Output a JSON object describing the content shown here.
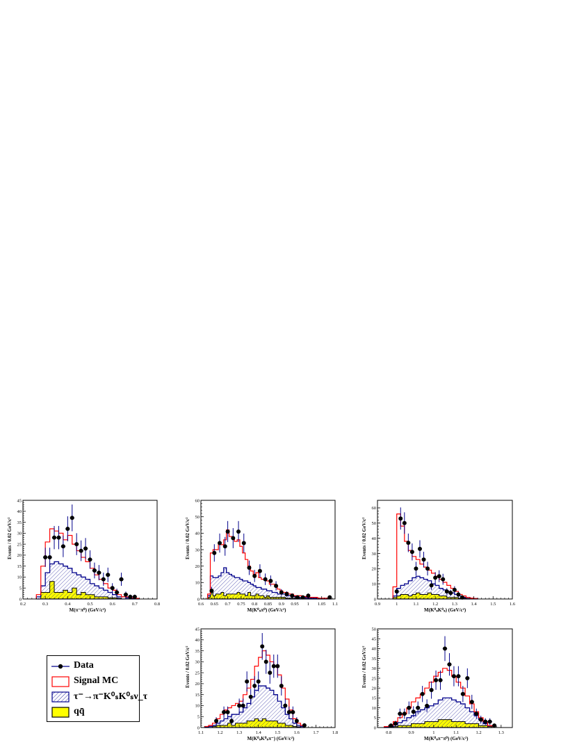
{
  "chart_data": [
    {
      "id": "p1",
      "type": "histogram",
      "xlabel": "M(π⁻π⁰) (GeV/c²)",
      "ylabel": "Events / 0.02 GeV/c²",
      "xlim": [
        0.2,
        0.8
      ],
      "ylim": [
        0,
        45
      ],
      "xticks": [
        "0.2",
        "0.3",
        "0.4",
        "0.5",
        "0.6",
        "0.7",
        "0.8"
      ],
      "yticks": [
        "0",
        "5",
        "10",
        "15",
        "20",
        "25",
        "30",
        "35",
        "40",
        "45"
      ],
      "xticks_v": [
        0.2,
        0.3,
        0.4,
        0.5,
        0.6,
        0.7,
        0.8
      ],
      "yticks_v": [
        0,
        5,
        10,
        15,
        20,
        25,
        30,
        35,
        40,
        45
      ],
      "bins": [
        0.27,
        0.29,
        0.31,
        0.33,
        0.35,
        0.37,
        0.39,
        0.41,
        0.43,
        0.45,
        0.47,
        0.49,
        0.51,
        0.53,
        0.55,
        0.57,
        0.59,
        0.61,
        0.63,
        0.65,
        0.67,
        0.69,
        0.71,
        0.73
      ],
      "signal_mc": [
        2,
        15,
        26,
        32,
        31,
        30,
        27,
        29,
        25,
        22,
        19,
        17,
        14,
        11,
        9,
        7,
        5,
        4,
        2,
        1,
        1,
        0.5,
        0.3
      ],
      "tau_bkg": [
        1,
        6,
        12,
        16,
        17,
        16,
        15,
        14,
        12,
        11,
        10,
        9,
        7,
        6,
        5,
        4,
        3,
        2,
        1,
        1,
        0.5,
        0.3,
        0.2
      ],
      "qq_bkg": [
        0,
        3,
        3,
        8,
        3,
        3,
        4,
        3,
        5,
        2,
        3,
        2,
        2,
        1,
        1,
        1,
        0.5,
        0.5,
        0.3,
        0,
        0,
        0,
        0
      ],
      "data_x": [
        0.3,
        0.32,
        0.34,
        0.36,
        0.38,
        0.4,
        0.42,
        0.44,
        0.46,
        0.48,
        0.5,
        0.52,
        0.54,
        0.56,
        0.58,
        0.6,
        0.62,
        0.64,
        0.66,
        0.68,
        0.7
      ],
      "data_y": [
        19,
        19,
        28,
        28,
        24,
        32,
        37,
        25,
        22,
        23,
        18,
        13,
        12,
        9,
        11,
        5,
        3,
        9,
        2,
        1,
        1
      ],
      "data_err": [
        4.4,
        4.4,
        5.3,
        5.3,
        4.9,
        5.7,
        6.1,
        5,
        4.7,
        4.8,
        4.2,
        3.6,
        3.5,
        3,
        3.3,
        2.2,
        1.7,
        3,
        1.4,
        1,
        1
      ]
    },
    {
      "id": "p2",
      "type": "histogram",
      "xlabel": "M(K⁰ₛπ⁰) (GeV/c²)",
      "ylabel": "Events / 0.02 GeV/c²",
      "xlim": [
        0.6,
        1.1
      ],
      "ylim": [
        0,
        60
      ],
      "xticks": [
        "0.6",
        "0.65",
        "0.7",
        "0.75",
        "0.8",
        "0.85",
        "0.9",
        "0.95",
        "1",
        "1.05",
        "1.1"
      ],
      "yticks": [
        "0",
        "10",
        "20",
        "30",
        "40",
        "50",
        "60"
      ],
      "xticks_v": [
        0.6,
        0.65,
        0.7,
        0.75,
        0.8,
        0.85,
        0.9,
        0.95,
        1.0,
        1.05,
        1.1
      ],
      "yticks_v": [
        0,
        10,
        20,
        30,
        40,
        50,
        60
      ],
      "bins": [
        0.63,
        0.64,
        0.65,
        0.66,
        0.67,
        0.68,
        0.69,
        0.7,
        0.71,
        0.72,
        0.73,
        0.74,
        0.75,
        0.76,
        0.77,
        0.78,
        0.79,
        0.8,
        0.81,
        0.82,
        0.83,
        0.84,
        0.85,
        0.86,
        0.87,
        0.88,
        0.89,
        0.9,
        0.91,
        0.92,
        0.93,
        0.94,
        0.95,
        0.96,
        0.97,
        0.98,
        0.99,
        1.0,
        1.01,
        1.02,
        1.03,
        1.04,
        1.05,
        1.06,
        1.07,
        1.08,
        1.09
      ],
      "signal_mc": [
        3,
        28,
        30,
        30,
        34,
        33,
        36,
        42,
        38,
        37,
        35,
        36,
        32,
        28,
        24,
        20,
        17,
        15,
        16,
        13,
        12,
        12,
        11,
        9,
        9,
        8,
        6,
        5,
        4,
        4,
        3,
        3,
        2,
        2,
        2,
        1.5,
        1.5,
        1,
        1,
        1,
        1,
        0.5,
        0.5,
        0.5,
        0.5,
        0.5
      ],
      "tau_bkg": [
        2,
        14,
        13,
        13,
        14,
        16,
        19,
        16,
        15,
        14,
        13,
        13,
        12,
        11,
        11,
        10,
        9,
        8,
        7,
        7,
        6,
        6,
        5,
        5,
        4,
        4,
        3,
        3,
        3,
        2,
        2,
        2,
        1.5,
        1.5,
        1,
        1,
        1,
        0.5,
        0.5,
        0.5,
        0.5,
        0.3,
        0.3,
        0.3,
        0.3,
        0.3
      ],
      "qq_bkg": [
        1,
        4,
        2,
        3,
        3,
        4,
        2,
        3,
        3,
        3,
        3,
        4,
        3,
        3,
        2,
        4,
        2,
        2,
        3,
        2,
        2,
        1,
        2,
        1,
        1,
        1,
        1,
        1,
        1,
        0.5,
        0.5,
        0.5,
        0.5,
        0.3,
        0.3,
        0.3,
        0.3,
        0,
        0,
        0,
        0,
        0,
        0,
        0,
        0,
        0
      ],
      "data_x": [
        0.64,
        0.65,
        0.67,
        0.69,
        0.7,
        0.72,
        0.74,
        0.76,
        0.78,
        0.8,
        0.82,
        0.84,
        0.86,
        0.88,
        0.9,
        0.92,
        0.94,
        0.96,
        0.98,
        1.0,
        1.08
      ],
      "data_y": [
        5,
        28,
        34,
        32,
        41,
        37,
        41,
        34,
        19,
        14,
        17,
        12,
        11,
        8,
        4,
        3,
        2,
        1,
        1,
        2,
        1
      ],
      "data_err": [
        2.2,
        5.3,
        5.8,
        5.7,
        6.4,
        6.1,
        6.4,
        5.8,
        4.4,
        3.7,
        4.1,
        3.5,
        3.3,
        2.8,
        2,
        1.7,
        1.4,
        1,
        1,
        1.4,
        1
      ]
    },
    {
      "id": "p3",
      "type": "histogram",
      "xlabel": "M(K⁰ₛK⁰ₛ) (GeV/c²)",
      "ylabel": "Events / 0.02 GeV/c²",
      "xlim": [
        0.9,
        1.6
      ],
      "ylim": [
        0,
        65
      ],
      "xticks": [
        "0.9",
        "1",
        "1.1",
        "1.2",
        "1.3",
        "1.4",
        "1.5",
        "1.6"
      ],
      "yticks": [
        "0",
        "10",
        "20",
        "30",
        "40",
        "50",
        "60"
      ],
      "xticks_v": [
        0.9,
        1.0,
        1.1,
        1.2,
        1.3,
        1.4,
        1.5,
        1.6
      ],
      "yticks_v": [
        0,
        10,
        20,
        30,
        40,
        50,
        60
      ],
      "bins": [
        0.99,
        1.01,
        1.03,
        1.05,
        1.07,
        1.09,
        1.11,
        1.13,
        1.15,
        1.17,
        1.19,
        1.21,
        1.23,
        1.25,
        1.27,
        1.29,
        1.31,
        1.33,
        1.35,
        1.37,
        1.39,
        1.41,
        1.43
      ],
      "signal_mc": [
        8,
        56,
        48,
        38,
        32,
        28,
        26,
        23,
        21,
        19,
        17,
        15,
        13,
        11,
        9,
        7,
        5,
        3,
        2,
        1,
        0.5,
        0.3
      ],
      "tau_bkg": [
        2,
        7,
        9,
        10,
        12,
        14,
        15,
        14,
        13,
        12,
        10,
        9,
        7,
        6,
        5,
        4,
        3,
        2,
        1,
        1,
        0.5,
        0.3
      ],
      "qq_bkg": [
        1,
        2,
        3,
        3,
        2,
        3,
        4,
        3,
        3,
        4,
        3,
        3,
        2,
        2,
        1,
        1,
        1,
        0.5,
        0.5,
        0.3,
        0,
        0
      ],
      "data_x": [
        1.0,
        1.02,
        1.04,
        1.06,
        1.08,
        1.1,
        1.12,
        1.14,
        1.16,
        1.18,
        1.2,
        1.22,
        1.24,
        1.26,
        1.28,
        1.3,
        1.32,
        1.34
      ],
      "data_y": [
        5,
        53,
        50,
        37,
        31,
        20,
        33,
        26,
        20,
        9,
        14,
        15,
        13,
        5,
        4,
        6,
        3,
        1
      ],
      "data_err": [
        2.2,
        7.3,
        7.1,
        6.1,
        5.6,
        4.5,
        5.7,
        5.1,
        4.5,
        3,
        3.7,
        3.9,
        3.6,
        2.2,
        2,
        2.4,
        1.7,
        1
      ]
    },
    {
      "id": "p4",
      "type": "histogram",
      "xlabel": "M(K⁰ₛK⁰ₛπ⁻) (GeV/c²)",
      "ylabel": "Events / 0.02 GeV/c²",
      "xlim": [
        1.1,
        1.8
      ],
      "ylim": [
        0,
        45
      ],
      "xticks": [
        "1.1",
        "1.2",
        "1.3",
        "1.4",
        "1.5",
        "1.6",
        "1.7",
        "1.8"
      ],
      "yticks": [
        "0",
        "5",
        "10",
        "15",
        "20",
        "25",
        "30",
        "35",
        "40",
        "45"
      ],
      "xticks_v": [
        1.1,
        1.2,
        1.3,
        1.4,
        1.5,
        1.6,
        1.7,
        1.8
      ],
      "yticks_v": [
        0,
        5,
        10,
        15,
        20,
        25,
        30,
        35,
        40,
        45
      ],
      "bins": [
        1.13,
        1.15,
        1.17,
        1.19,
        1.21,
        1.23,
        1.25,
        1.27,
        1.29,
        1.31,
        1.33,
        1.35,
        1.37,
        1.39,
        1.41,
        1.43,
        1.45,
        1.47,
        1.49,
        1.51,
        1.53,
        1.55,
        1.57,
        1.59,
        1.61,
        1.63,
        1.65
      ],
      "signal_mc": [
        0.5,
        1,
        2,
        4,
        6,
        8,
        9,
        10,
        11,
        12,
        15,
        18,
        22,
        28,
        32,
        35,
        33,
        30,
        28,
        24,
        18,
        13,
        8,
        4,
        2,
        1
      ],
      "tau_bkg": [
        0.3,
        0.5,
        1,
        2,
        3,
        4,
        5,
        6,
        6,
        7,
        9,
        11,
        14,
        17,
        19,
        19,
        18,
        17,
        15,
        12,
        9,
        6,
        4,
        2,
        1,
        0.5
      ],
      "qq_bkg": [
        0,
        0,
        0.5,
        1,
        1,
        1,
        2,
        1,
        2,
        2,
        2,
        3,
        3,
        4,
        3,
        4,
        3,
        3,
        3,
        2,
        2,
        1,
        1,
        0.5,
        0.3,
        0
      ],
      "data_x": [
        1.18,
        1.22,
        1.24,
        1.26,
        1.3,
        1.32,
        1.34,
        1.36,
        1.38,
        1.4,
        1.42,
        1.44,
        1.46,
        1.48,
        1.5,
        1.52,
        1.54,
        1.56,
        1.58,
        1.6,
        1.64
      ],
      "data_y": [
        3,
        7,
        7,
        3,
        10,
        10,
        21,
        14,
        19,
        21,
        37,
        30,
        25,
        28,
        28,
        19,
        10,
        7,
        7,
        3,
        1
      ],
      "data_err": [
        1.7,
        2.6,
        2.6,
        1.7,
        3.2,
        3.2,
        4.6,
        3.7,
        4.4,
        4.6,
        6.1,
        5.5,
        5,
        5.3,
        5.3,
        4.4,
        3.2,
        2.6,
        2.6,
        1.7,
        1
      ]
    },
    {
      "id": "p5",
      "type": "histogram",
      "xlabel": "M(K⁰ₛπ⁻π⁰) (GeV/c²)",
      "ylabel": "Events / 0.02 GeV/c²",
      "xlim": [
        0.75,
        1.35
      ],
      "ylim": [
        0,
        50
      ],
      "xticks": [
        "0.8",
        "0.9",
        "1",
        "1.1",
        "1.2",
        "1.3"
      ],
      "yticks": [
        "0",
        "5",
        "10",
        "15",
        "20",
        "25",
        "30",
        "35",
        "40",
        "45",
        "50"
      ],
      "xticks_v": [
        0.8,
        0.9,
        1.0,
        1.1,
        1.2,
        1.3
      ],
      "yticks_v": [
        0,
        5,
        10,
        15,
        20,
        25,
        30,
        35,
        40,
        45,
        50
      ],
      "bins": [
        0.79,
        0.81,
        0.83,
        0.85,
        0.87,
        0.89,
        0.91,
        0.93,
        0.95,
        0.97,
        0.99,
        1.01,
        1.03,
        1.05,
        1.07,
        1.09,
        1.11,
        1.13,
        1.15,
        1.17,
        1.19,
        1.21,
        1.23,
        1.25,
        1.27
      ],
      "signal_mc": [
        0.5,
        1,
        3,
        5,
        7,
        10,
        13,
        15,
        17,
        20,
        23,
        26,
        28,
        30,
        29,
        26,
        23,
        20,
        16,
        12,
        8,
        5,
        3,
        1
      ],
      "tau_bkg": [
        0.3,
        0.5,
        1.5,
        2.5,
        3.5,
        5,
        6,
        8,
        9,
        10,
        11,
        12,
        14,
        15,
        15,
        14,
        13,
        12,
        10,
        8,
        6,
        4,
        2,
        1
      ],
      "qq_bkg": [
        0,
        0,
        0.5,
        1,
        1,
        1,
        2,
        2,
        2,
        3,
        3,
        3,
        4,
        4,
        4,
        3,
        3,
        3,
        2,
        2,
        2,
        1,
        1,
        0.5
      ],
      "data_x": [
        0.81,
        0.83,
        0.85,
        0.87,
        0.89,
        0.91,
        0.93,
        0.95,
        0.97,
        0.99,
        1.01,
        1.03,
        1.05,
        1.07,
        1.09,
        1.11,
        1.13,
        1.15,
        1.17,
        1.19,
        1.21,
        1.23,
        1.25,
        1.27
      ],
      "data_y": [
        1,
        2,
        7,
        7,
        10,
        8,
        10,
        17,
        11,
        19,
        24,
        24,
        40,
        32,
        26,
        26,
        17,
        25,
        13,
        7,
        4,
        3,
        3,
        1
      ],
      "data_err": [
        1,
        1.4,
        2.6,
        2.6,
        3.2,
        2.8,
        3.2,
        4.1,
        3.3,
        4.4,
        4.9,
        4.9,
        6.3,
        5.7,
        5.1,
        5.1,
        4.1,
        5,
        3.6,
        2.6,
        2,
        1.7,
        1.7,
        1
      ]
    }
  ],
  "legend": {
    "data": "Data",
    "signal": "Signal MC",
    "tau_bkg": "τ⁻→π⁻K⁰ₛK⁰ₛν_τ",
    "qq_bkg": "qq̄"
  },
  "colors": {
    "signal": "#ff0000",
    "tau_bkg": "#00008b",
    "qq_fill": "#ffff00",
    "data": "#000000",
    "data_err": "#00008b"
  }
}
